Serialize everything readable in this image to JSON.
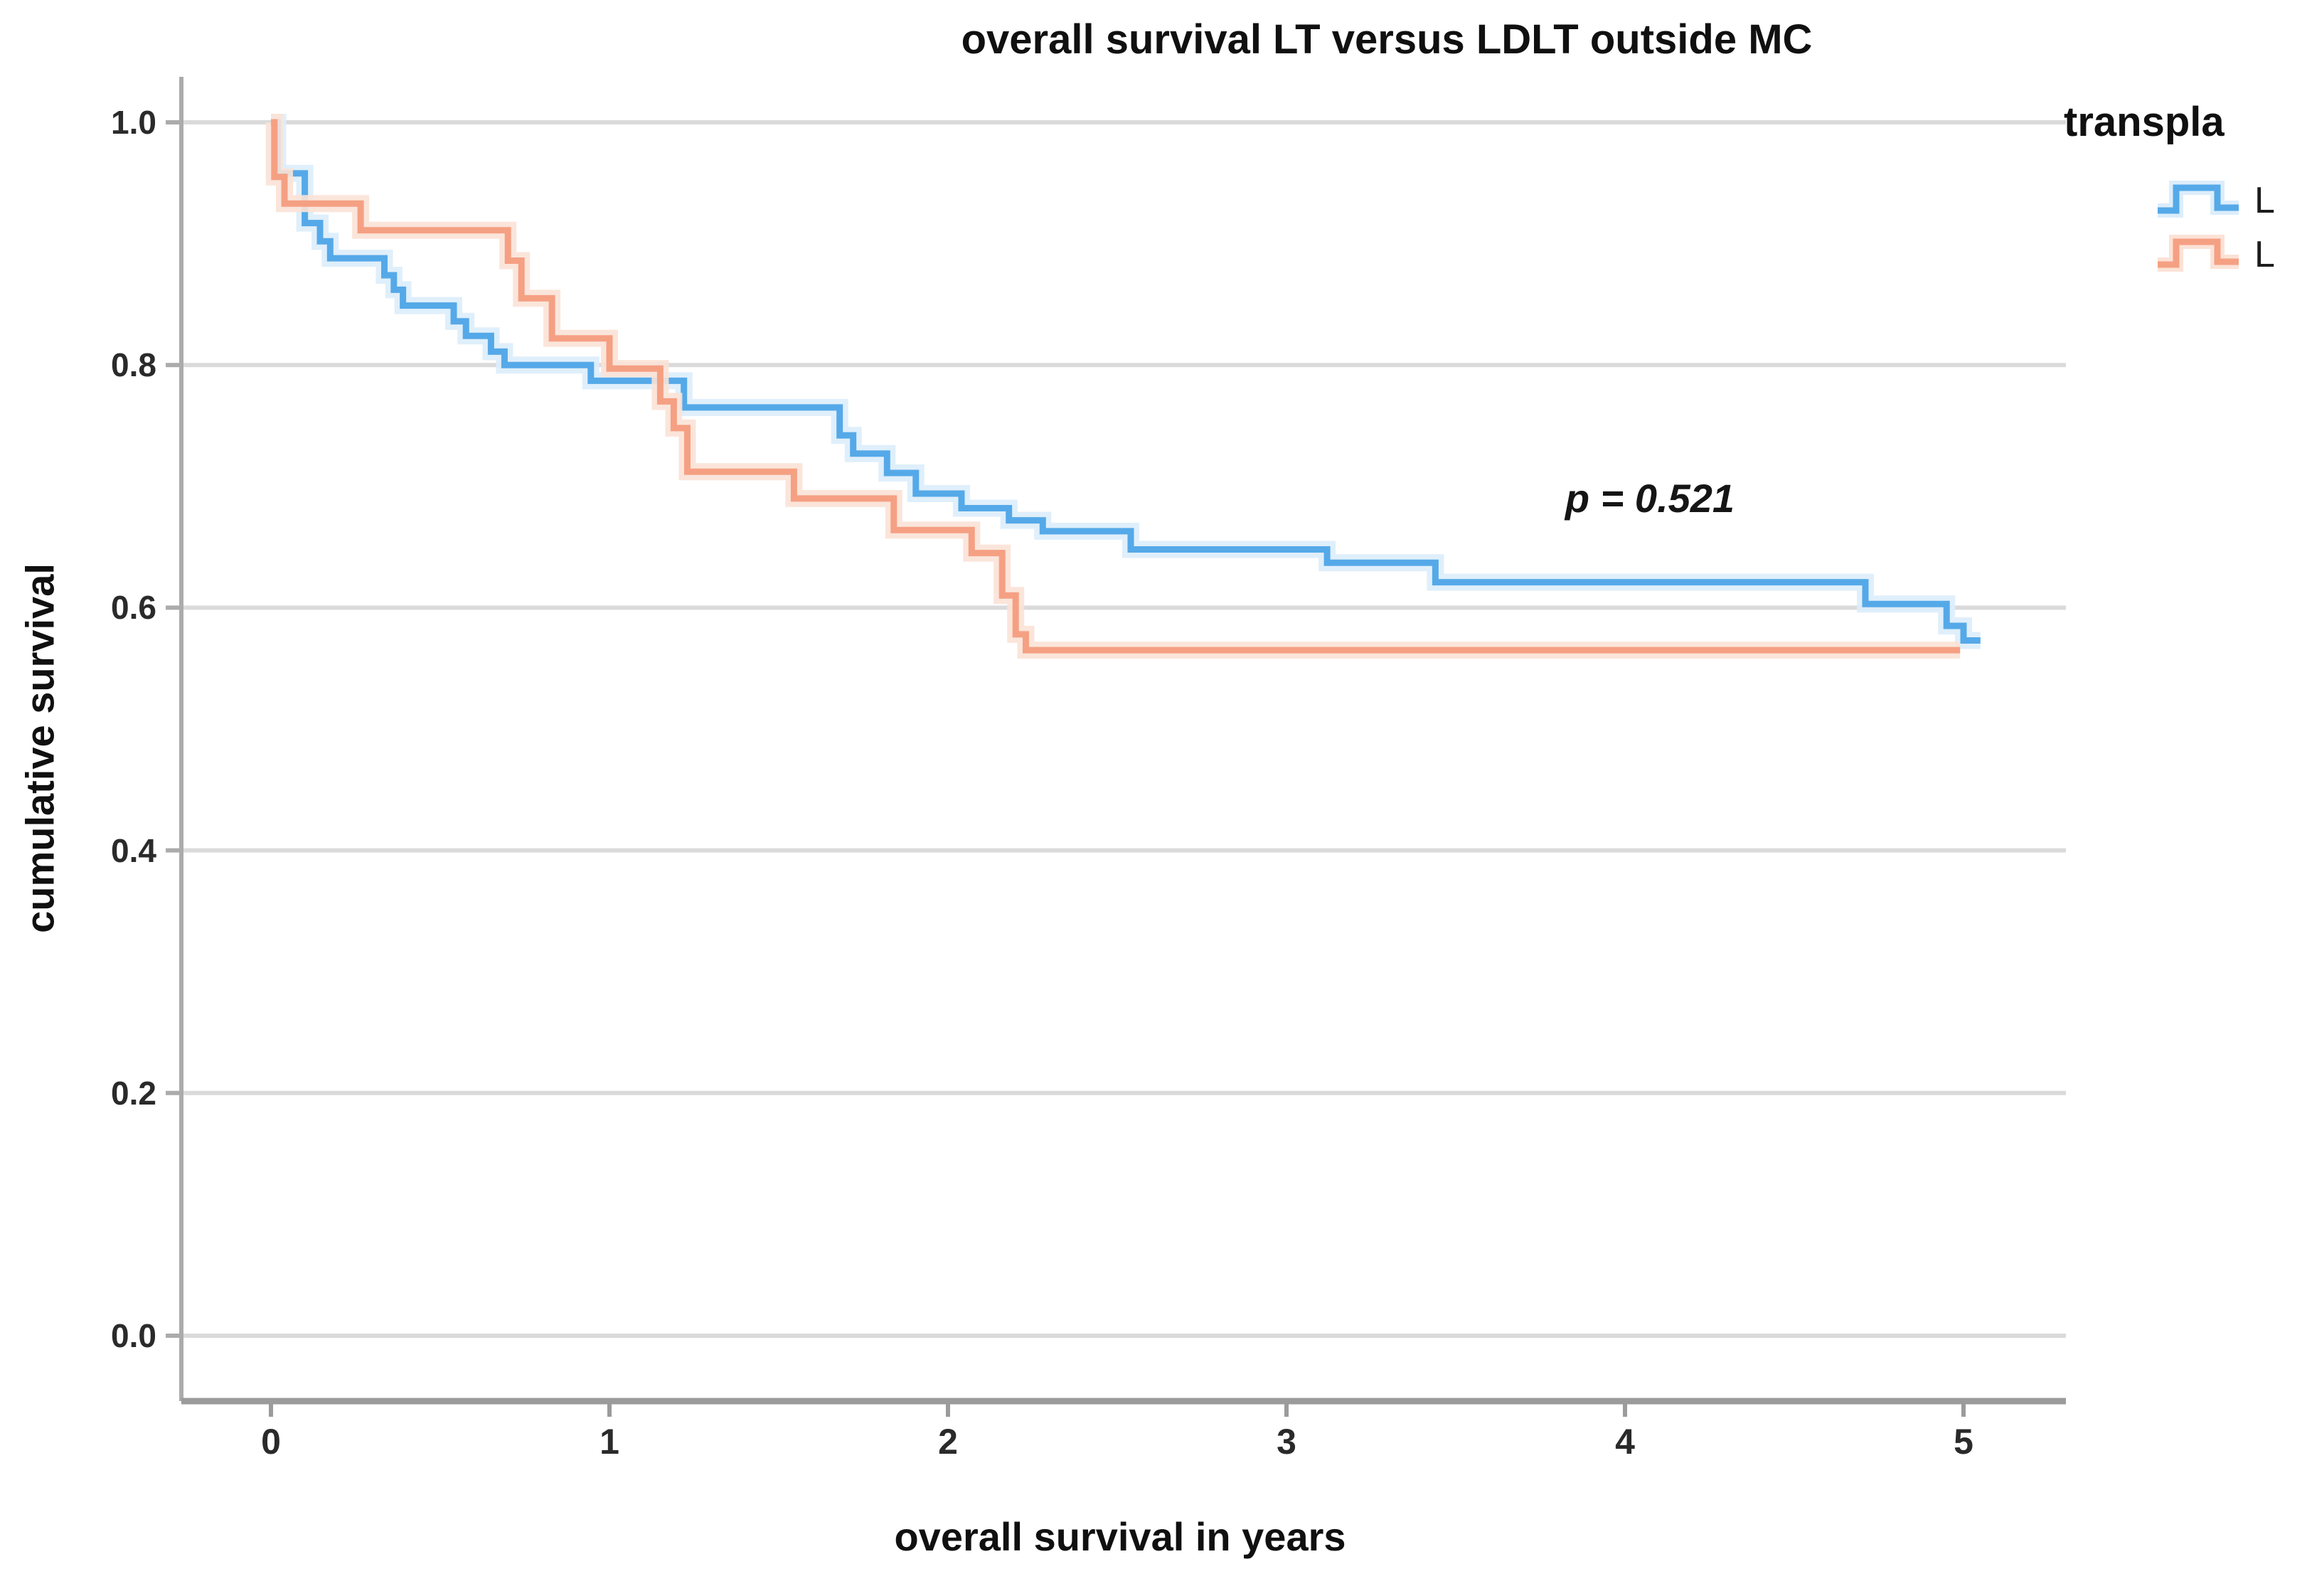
{
  "title": "overall survival LT versus LDLT outside MC",
  "annotation": {
    "p_value_label": "p = 0.521"
  },
  "legend": {
    "title": "transpla",
    "items": [
      {
        "label": "L",
        "color": "#55A9E8",
        "halo": "#DCEDFB"
      },
      {
        "label": "L",
        "color": "#F5A083",
        "halo": "#FBE2D6"
      }
    ]
  },
  "axes": {
    "x_title": "overall survival in years",
    "y_title": "cumulative survival",
    "x_tick_labels": [
      "0",
      "1",
      "2",
      "3",
      "4",
      "5"
    ],
    "y_tick_labels": [
      "0.0",
      "0.2",
      "0.4",
      "0.6",
      "0.8",
      "1.0"
    ]
  },
  "chart_data": {
    "type": "line",
    "subtype": "kaplan-meier-step",
    "title": "overall survival LT versus LDLT outside MC",
    "xlabel": "overall survival in years",
    "ylabel": "cumulative survival",
    "xlim": [
      -0.26,
      5.22
    ],
    "ylim": [
      -0.055,
      1.04
    ],
    "x_ticks": [
      0,
      1,
      2,
      3,
      4,
      5
    ],
    "y_ticks": [
      0.0,
      0.2,
      0.4,
      0.6,
      0.8,
      1.0
    ],
    "grid": "horizontal",
    "legend_position": "top-right",
    "annotation": "p = 0.521",
    "annotation_xy": [
      3.9,
      0.71
    ],
    "series": [
      {
        "name": "L",
        "color": "#55A9E8",
        "halo": "#DCEDFB",
        "points": [
          [
            0,
            1.0
          ],
          [
            0.02,
            0.958
          ],
          [
            0.1,
            0.917
          ],
          [
            0.145,
            0.902
          ],
          [
            0.175,
            0.888
          ],
          [
            0.335,
            0.874
          ],
          [
            0.363,
            0.862
          ],
          [
            0.39,
            0.849
          ],
          [
            0.54,
            0.836
          ],
          [
            0.576,
            0.824
          ],
          [
            0.65,
            0.811
          ],
          [
            0.69,
            0.8
          ],
          [
            0.945,
            0.787
          ],
          [
            1.22,
            0.765
          ],
          [
            1.68,
            0.742
          ],
          [
            1.72,
            0.727
          ],
          [
            1.82,
            0.711
          ],
          [
            1.905,
            0.694
          ],
          [
            2.04,
            0.682
          ],
          [
            2.18,
            0.672
          ],
          [
            2.28,
            0.663
          ],
          [
            2.54,
            0.648
          ],
          [
            3.12,
            0.637
          ],
          [
            3.44,
            0.621
          ],
          [
            4.71,
            0.603
          ],
          [
            4.95,
            0.585
          ],
          [
            5.0,
            0.573
          ],
          [
            5.05,
            0.573
          ]
        ]
      },
      {
        "name": "L",
        "color": "#F5A083",
        "halo": "#FBE2D6",
        "points": [
          [
            0,
            1.0
          ],
          [
            0.01,
            0.955
          ],
          [
            0.04,
            0.933
          ],
          [
            0.265,
            0.911
          ],
          [
            0.7,
            0.886
          ],
          [
            0.74,
            0.855
          ],
          [
            0.83,
            0.822
          ],
          [
            1.0,
            0.797
          ],
          [
            1.15,
            0.77
          ],
          [
            1.19,
            0.748
          ],
          [
            1.23,
            0.712
          ],
          [
            1.545,
            0.69
          ],
          [
            1.84,
            0.664
          ],
          [
            2.07,
            0.645
          ],
          [
            2.16,
            0.61
          ],
          [
            2.2,
            0.578
          ],
          [
            2.23,
            0.565
          ],
          [
            4.99,
            0.565
          ]
        ]
      }
    ]
  }
}
